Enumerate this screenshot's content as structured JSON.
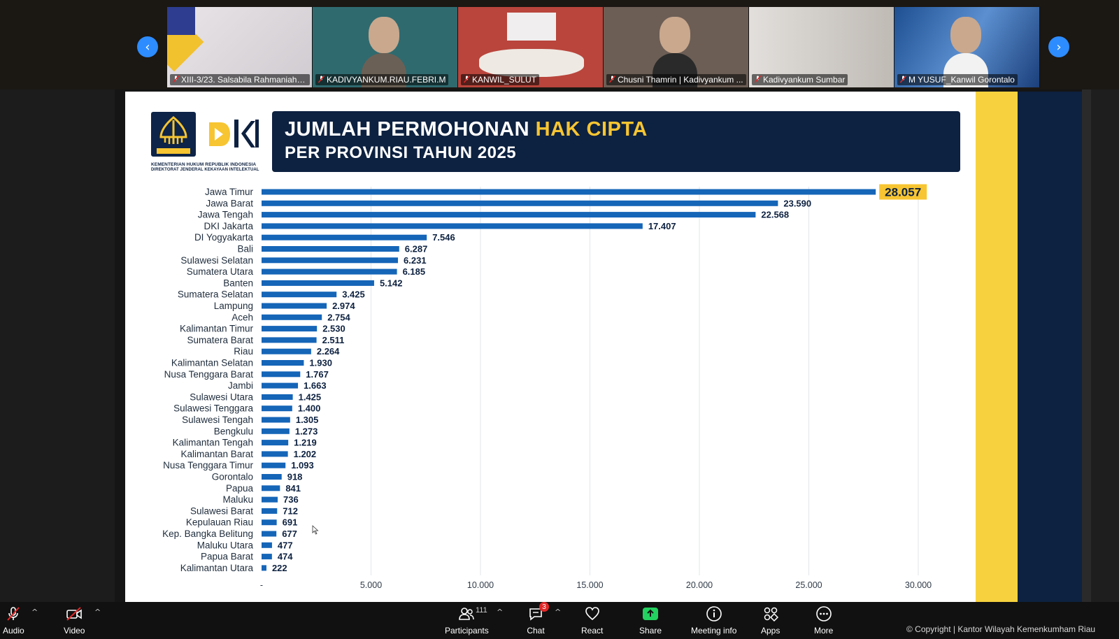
{
  "gallery": {
    "prev_label": "‹",
    "next_label": "›",
    "participants": [
      {
        "name": "XIII-3/23. Salsabila Rahmaniah-K...",
        "bg": "#d8d4d6"
      },
      {
        "name": "KADIVYANKUM.RIAU.FEBRI.M",
        "bg": "#2f6a6f"
      },
      {
        "name": "KANWIL_SULUT",
        "bg": "#b9453c"
      },
      {
        "name": "Chusni Thamrin | Kadivyankum ...",
        "bg": "#6c5e55"
      },
      {
        "name": "Kadivyankum Sumbar",
        "bg": "#c8c6c4"
      },
      {
        "name": "M YUSUF_Kanwil Gorontalo",
        "bg": "#2c5f9e"
      }
    ]
  },
  "slide": {
    "ministry_line1": "KEMENTERIAN HUKUM REPUBLIK INDONESIA",
    "ministry_line2": "DIREKTORAT JENDERAL KEKAYAAN INTELEKTUAL",
    "emblem_text": "PENGAYOMAN",
    "title_part1": "JUMLAH PERMOHONAN ",
    "title_highlight": "HAK CIPTA",
    "title_line2": "PER PROVINSI TAHUN 2025"
  },
  "chart_data": {
    "type": "bar",
    "orientation": "horizontal",
    "categories": [
      "Jawa Timur",
      "Jawa Barat",
      "Jawa Tengah",
      "DKI Jakarta",
      "DI Yogyakarta",
      "Bali",
      "Sulawesi Selatan",
      "Sumatera Utara",
      "Banten",
      "Sumatera Selatan",
      "Lampung",
      "Aceh",
      "Kalimantan Timur",
      "Sumatera Barat",
      "Riau",
      "Kalimantan Selatan",
      "Nusa Tenggara Barat",
      "Jambi",
      "Sulawesi Utara",
      "Sulawesi Tenggara",
      "Sulawesi Tengah",
      "Bengkulu",
      "Kalimantan Tengah",
      "Kalimantan Barat",
      "Nusa Tenggara Timur",
      "Gorontalo",
      "Papua",
      "Maluku",
      "Sulawesi Barat",
      "Kepulauan Riau",
      "Kep. Bangka Belitung",
      "Maluku Utara",
      "Papua Barat",
      "Kalimantan Utara"
    ],
    "values": [
      28057,
      23590,
      22568,
      17407,
      7546,
      6287,
      6231,
      6185,
      5142,
      3425,
      2974,
      2754,
      2530,
      2511,
      2264,
      1930,
      1767,
      1663,
      1425,
      1400,
      1305,
      1273,
      1219,
      1202,
      1093,
      918,
      841,
      736,
      712,
      691,
      677,
      477,
      474,
      222
    ],
    "value_labels": [
      "28.057",
      "23.590",
      "22.568",
      "17.407",
      "7.546",
      "6.287",
      "6.231",
      "6.185",
      "5.142",
      "3.425",
      "2.974",
      "2.754",
      "2.530",
      "2.511",
      "2.264",
      "1.930",
      "1.767",
      "1.663",
      "1.425",
      "1.400",
      "1.305",
      "1.273",
      "1.219",
      "1.202",
      "1.093",
      "918",
      "841",
      "736",
      "712",
      "691",
      "677",
      "477",
      "474",
      "222"
    ],
    "xlim": [
      0,
      30000
    ],
    "ticks": [
      0,
      5000,
      10000,
      15000,
      20000,
      25000,
      30000
    ],
    "tick_labels": [
      "-",
      "5.000",
      "10.000",
      "15.000",
      "20.000",
      "25.000",
      "30.000"
    ],
    "grid": true,
    "bar_color": "#1565b8",
    "highlight_color": "#f7c531"
  },
  "toolbar": {
    "audio": "Audio",
    "video": "Video",
    "participants": "Participants",
    "participants_count": "111",
    "chat": "Chat",
    "chat_badge": "3",
    "react": "React",
    "share": "Share",
    "meeting_info": "Meeting info",
    "apps": "Apps",
    "more": "More"
  },
  "copyright": "© Copyright | Kantor Wilayah Kemenkumham Riau",
  "colors": {
    "zoom_blue": "#2d8cff",
    "share_green": "#23d160",
    "navy": "#0d2140",
    "gold": "#f7c531"
  }
}
